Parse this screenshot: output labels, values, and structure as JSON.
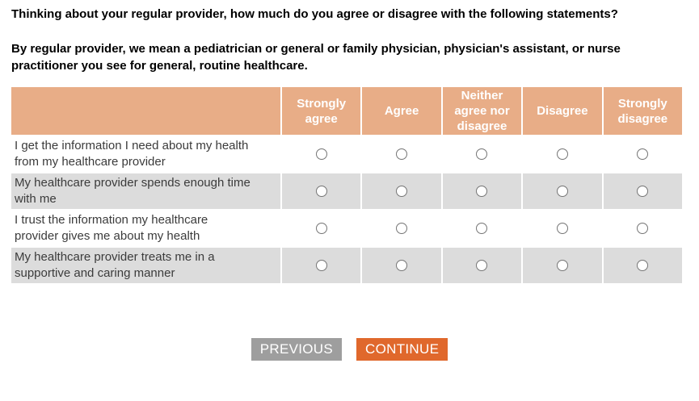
{
  "question": {
    "prompt": "Thinking about your regular provider, how much do you agree or disagree with the following statements?",
    "definition": "By regular provider, we mean a pediatrician or general or family physician, physician's assistant, or nurse practitioner you see for general, routine healthcare."
  },
  "matrix": {
    "columns": [
      "Strongly agree",
      "Agree",
      "Neither agree nor disagree",
      "Disagree",
      "Strongly disagree"
    ],
    "rows": [
      "I get the information I need about my health from my healthcare provider",
      "My healthcare provider spends enough time with me",
      "I trust the information my healthcare provider gives me about my health",
      "My healthcare provider treats me in a supportive and caring manner"
    ],
    "selected": [
      null,
      null,
      null,
      null
    ]
  },
  "buttons": {
    "previous": "PREVIOUS",
    "continue": "CONTINUE"
  },
  "colors": {
    "header_bg": "#e8ad87",
    "row_alt_bg": "#dcdcdc",
    "previous_bg": "#9e9e9e",
    "continue_bg": "#e0682c"
  }
}
